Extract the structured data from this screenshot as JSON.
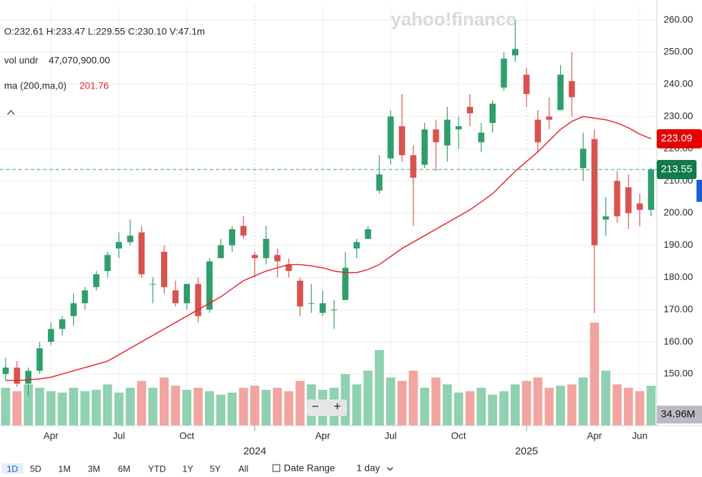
{
  "chart_data": {
    "type": "candlestick",
    "categories": [
      null,
      null,
      null,
      null,
      "Apr",
      null,
      null,
      null,
      null,
      null,
      "Jul",
      null,
      null,
      null,
      null,
      null,
      "Oct",
      null,
      null,
      null,
      null,
      null,
      "2024",
      null,
      null,
      null,
      null,
      null,
      "Apr",
      null,
      null,
      null,
      null,
      null,
      "Jul",
      null,
      null,
      null,
      null,
      null,
      "Oct",
      null,
      null,
      null,
      null,
      null,
      "2025",
      null,
      null,
      null,
      null,
      null,
      "Apr",
      null,
      null,
      null,
      "Jun",
      null
    ],
    "open": [
      150,
      152,
      147,
      151,
      160,
      164,
      168,
      172,
      177,
      182,
      189,
      191,
      194,
      178,
      188,
      176,
      172,
      178,
      170,
      186,
      190,
      196,
      187,
      186,
      187,
      184,
      179,
      172,
      169,
      170,
      173,
      189,
      192,
      207,
      217,
      227,
      218,
      215,
      226,
      221,
      226,
      233,
      222,
      228,
      239,
      249,
      243,
      229,
      230,
      232,
      241,
      214,
      223,
      198,
      210,
      208,
      203,
      201
    ],
    "high": [
      155,
      154,
      152,
      160,
      166,
      168,
      175,
      177,
      182,
      188,
      194,
      198,
      196,
      180,
      190,
      179,
      178,
      180,
      186,
      192,
      196,
      199,
      188,
      196,
      189,
      186,
      180,
      178,
      176,
      173,
      188,
      192,
      196,
      218,
      232,
      237,
      221,
      228,
      229,
      233,
      230,
      237,
      228,
      235,
      250,
      260,
      245,
      232,
      236,
      246,
      250,
      225,
      226,
      205,
      213,
      212,
      206,
      214
    ],
    "low": [
      148,
      146,
      143,
      150,
      159,
      162,
      165,
      170,
      176,
      180,
      186,
      190,
      180,
      172,
      175,
      171,
      170,
      166,
      169,
      186,
      188,
      192,
      180,
      184,
      180,
      180,
      168,
      169,
      168,
      164,
      173,
      186,
      192,
      206,
      215,
      216,
      196,
      214,
      213,
      216,
      220,
      227,
      219,
      225,
      238,
      247,
      233,
      219,
      226,
      232,
      230,
      210,
      169,
      193,
      197,
      195,
      196,
      199
    ],
    "close": [
      152,
      147,
      151,
      158,
      164,
      167,
      172,
      176,
      181,
      187,
      191,
      193,
      181,
      178,
      177,
      172,
      178,
      168,
      185,
      190,
      195,
      193,
      186,
      192,
      185,
      182,
      171,
      172,
      172,
      170,
      183,
      191,
      195,
      212,
      230,
      218,
      211,
      226,
      222,
      229,
      227,
      231,
      225,
      234,
      248,
      251,
      237,
      222,
      229,
      243,
      236,
      220,
      190,
      199,
      199,
      200,
      201,
      213.55
    ],
    "volume": [
      55,
      50,
      60,
      55,
      50,
      48,
      55,
      50,
      52,
      60,
      48,
      55,
      65,
      55,
      70,
      58,
      52,
      55,
      50,
      45,
      48,
      55,
      58,
      52,
      55,
      50,
      65,
      60,
      52,
      55,
      75,
      60,
      80,
      110,
      70,
      65,
      80,
      55,
      70,
      60,
      48,
      50,
      55,
      45,
      50,
      60,
      65,
      70,
      55,
      58,
      60,
      70,
      150,
      80,
      60,
      55,
      50,
      58
    ],
    "ma": [
      148,
      148,
      148.2,
      148.5,
      149,
      150,
      151,
      152,
      153,
      154,
      156,
      158,
      160,
      162,
      164,
      166,
      168,
      170,
      172,
      174,
      176.5,
      179,
      180.5,
      182,
      183,
      184,
      184,
      183.6,
      183,
      182,
      181.5,
      181.5,
      182.5,
      184,
      186.5,
      189,
      191,
      193,
      195,
      197,
      199,
      201,
      203.5,
      206,
      209.5,
      213,
      216,
      219,
      222.5,
      226,
      228.5,
      230,
      229.5,
      229,
      228,
      226.5,
      224.5,
      223.09
    ],
    "up_color": "#2f9e6b",
    "down_color": "#d9534f",
    "up_volume_color": "#8fd1b0",
    "down_volume_color": "#f2a5a0",
    "ma_color": "#e8222c",
    "ylim": [
      134,
      264.5
    ],
    "yticks": [
      {
        "value": 150,
        "label": "150.00"
      },
      {
        "value": 160,
        "label": "160.00"
      },
      {
        "value": 170,
        "label": "170.00"
      },
      {
        "value": 180,
        "label": "180.00"
      },
      {
        "value": 190,
        "label": "190.00"
      },
      {
        "value": 200,
        "label": "200.00"
      },
      {
        "value": 210,
        "label": "210.00"
      },
      {
        "value": 220,
        "label": "220.00"
      },
      {
        "value": 230,
        "label": "230.00"
      },
      {
        "value": 240,
        "label": "240.00"
      },
      {
        "value": 250,
        "label": "250.00"
      },
      {
        "value": 260,
        "label": "260.00"
      }
    ],
    "volume_ylim": [
      0,
      190
    ],
    "grid": true,
    "last_price": 213.55,
    "ma_last": 223.09,
    "volume_last": "34.96M"
  },
  "header": {
    "ohlcv": "O:232.61 H:233.47 L:229.55 C:230.10 V:47.1m",
    "vol_label": "vol undr",
    "vol_value": "47,070,900.00",
    "ma_label": "ma (200,ma,0)",
    "ma_value": "201.76",
    "watermark": "yahoo!finance"
  },
  "controls": {
    "zoom_out": "−",
    "zoom_in": "+",
    "ranges": [
      "1D",
      "5D",
      "1M",
      "3M",
      "6M",
      "YTD",
      "1Y",
      "5Y",
      "All"
    ],
    "date_range": "Date Range",
    "interval": "1 day"
  }
}
